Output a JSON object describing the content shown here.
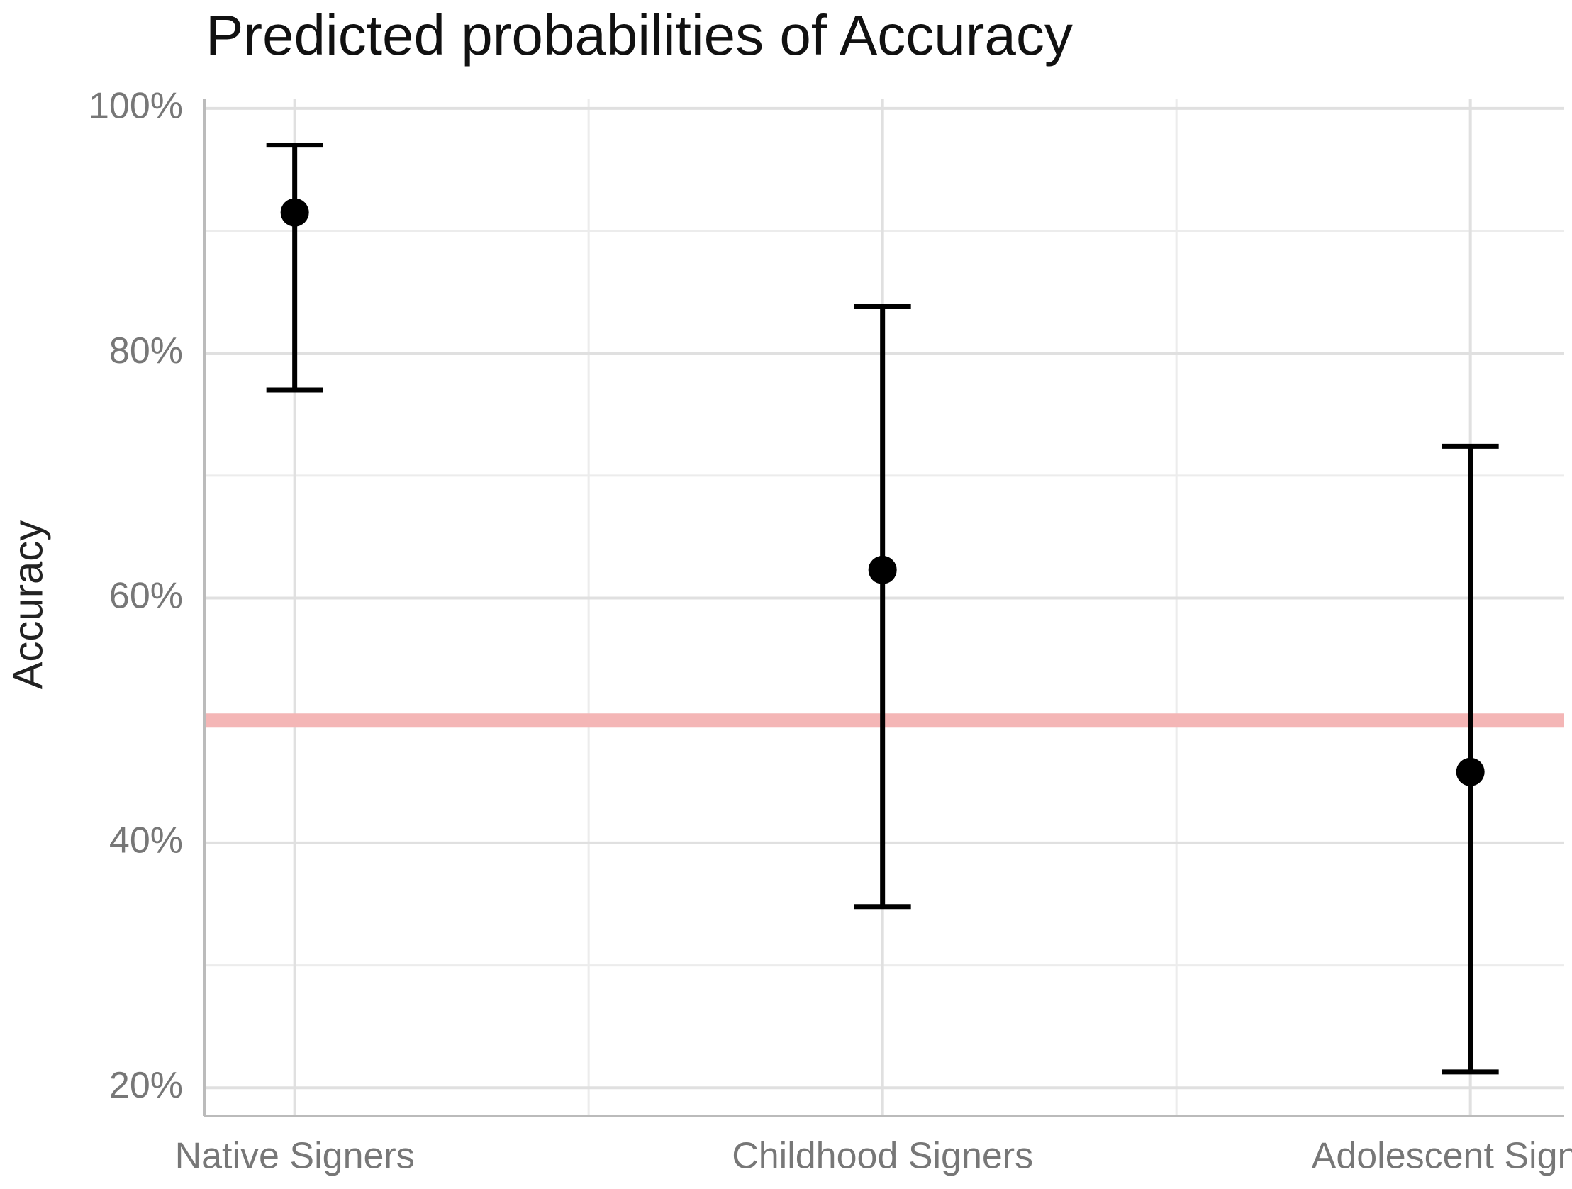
{
  "chart_data": {
    "type": "errorbar",
    "title": "Predicted probabilities of Accuracy",
    "y_label": "Accuracy",
    "categories": [
      "Native Signers",
      "Childhood Signers",
      "Adolescent Signers"
    ],
    "values": [
      91.5,
      62.3,
      45.8
    ],
    "lower": [
      77,
      34.8,
      21.3
    ],
    "upper": [
      97,
      83.8,
      72.4
    ],
    "color": "#000000",
    "ylim": [
      17.7,
      100.8
    ],
    "yticks": [
      {
        "value": 20,
        "label": "20%"
      },
      {
        "value": 40,
        "label": "40%"
      },
      {
        "value": 60,
        "label": "60%"
      },
      {
        "value": 80,
        "label": "80%"
      },
      {
        "value": 100,
        "label": "100%"
      }
    ],
    "minor_yticks": [
      30,
      50,
      70,
      90
    ],
    "reference_line": 50,
    "reference_color": "#f4b6b6",
    "grid": true
  }
}
